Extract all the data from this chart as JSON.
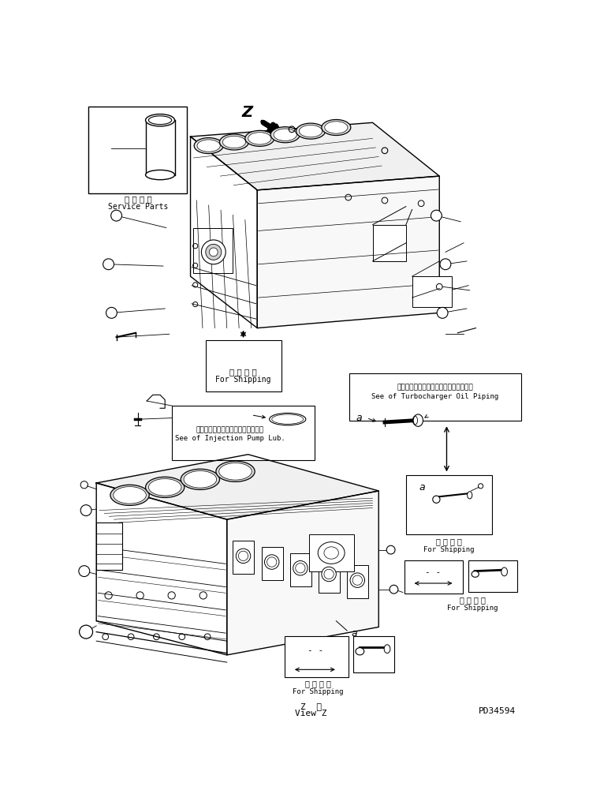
{
  "bg_color": "#ffffff",
  "line_color": "#000000",
  "title_bottom_1": "Z  視",
  "title_bottom_2": "View Z",
  "doc_number": "PD34594",
  "service_parts_jp": "補 給 専 用",
  "service_parts_en": "Service Parts",
  "shipping_jp": "運 搬 部 品",
  "shipping_en": "For Shipping",
  "injection_pump_jp": "インジェクションポンプルーブ参照",
  "injection_pump_en": "See of Injection Pump Lub.",
  "turbocharger_jp": "ターボチャージャオイルパイピング参照",
  "turbocharger_en": "See of Turbocharger Oil Piping",
  "label_a": "a",
  "label_z": "Z"
}
